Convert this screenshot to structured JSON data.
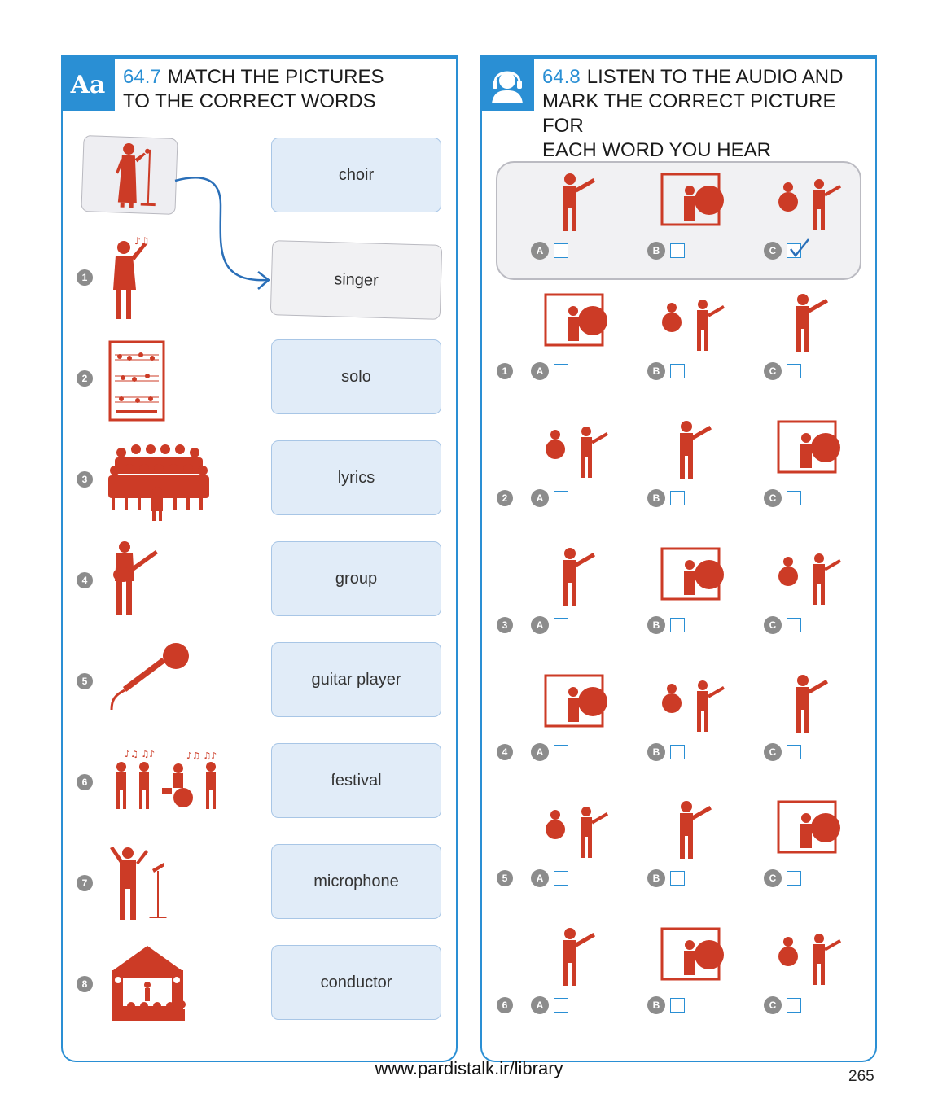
{
  "left_exercise": {
    "badge": "Aa",
    "number": "64.7",
    "title_line1": "MATCH THE PICTURES",
    "title_line2": "TO THE CORRECT WORDS",
    "words": [
      "choir",
      "singer",
      "solo",
      "lyrics",
      "group",
      "guitar player",
      "festival",
      "microphone",
      "conductor"
    ],
    "picture_numbers": [
      "1",
      "2",
      "3",
      "4",
      "5",
      "6",
      "7",
      "8"
    ],
    "pictures": [
      "conductor-icon",
      "sheet-music-icon",
      "choir-icon",
      "guitar-player-icon",
      "microphone-icon",
      "band-icon",
      "conductor-with-stand-icon",
      "festival-tent-icon"
    ],
    "example_picture": "singer-icon"
  },
  "right_exercise": {
    "badge_icon": "headphones-person-icon",
    "number": "64.8",
    "title_line1": "LISTEN TO THE AUDIO AND",
    "title_line2": "MARK THE CORRECT PICTURE FOR",
    "title_line3": "EACH WORD YOU HEAR",
    "option_letters": [
      "A",
      "B",
      "C"
    ],
    "row_numbers": [
      "1",
      "2",
      "3",
      "4",
      "5",
      "6"
    ],
    "example_checked": "C"
  },
  "colors": {
    "accent": "#2a8fd4",
    "illustration": "#cc3b26",
    "word_box": "#e1ecf8"
  },
  "footer": {
    "url": "www.pardistalk.ir/library",
    "page_number": "265"
  }
}
